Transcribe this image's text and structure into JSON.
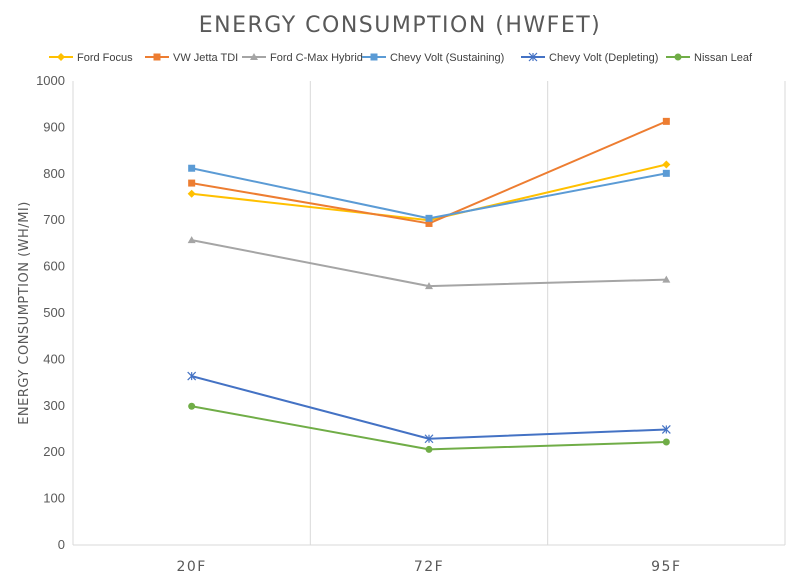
{
  "chart_data": {
    "type": "line",
    "title": "ENERGY CONSUMPTION (HWFET)",
    "xlabel": "",
    "ylabel": "ENERGY CONSUMPTION (WH/MI)",
    "categories": [
      "20F",
      "72F",
      "95F"
    ],
    "ylim": [
      0,
      1000
    ],
    "yticks": [
      0,
      100,
      200,
      300,
      400,
      500,
      600,
      700,
      800,
      900,
      1000
    ],
    "grid": "vertical",
    "legend_position": "top",
    "series": [
      {
        "name": "Ford Focus",
        "color": "#ffc000",
        "marker": "diamond",
        "values": [
          757,
          700,
          820
        ]
      },
      {
        "name": "VW Jetta TDI",
        "color": "#ed7d31",
        "marker": "square",
        "values": [
          780,
          693,
          913
        ]
      },
      {
        "name": "Ford C-Max Hybrid",
        "color": "#a5a5a5",
        "marker": "triangle",
        "values": [
          657,
          558,
          572
        ]
      },
      {
        "name": "Chevy Volt (Sustaining)",
        "color": "#5b9bd5",
        "marker": "square",
        "values": [
          812,
          704,
          801
        ]
      },
      {
        "name": "Chevy Volt (Depleting)",
        "color": "#4472c4",
        "marker": "star",
        "values": [
          364,
          229,
          249
        ]
      },
      {
        "name": "Nissan Leaf",
        "color": "#70ad47",
        "marker": "circle",
        "values": [
          299,
          206,
          222
        ]
      }
    ]
  }
}
